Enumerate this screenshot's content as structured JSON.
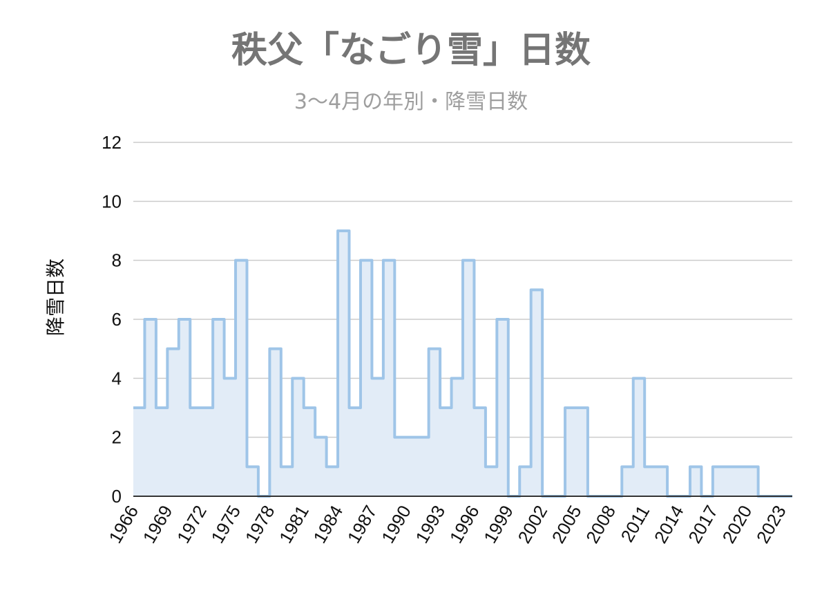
{
  "chart_data": {
    "type": "area",
    "title": "秩父「なごり雪」日数",
    "subtitle": "3〜4月の年別・降雪日数",
    "ylabel": "降雪日数",
    "xlabel": "",
    "ylim": [
      0,
      12
    ],
    "yticks": [
      "0",
      "2",
      "4",
      "6",
      "8",
      "10",
      "12"
    ],
    "xticks": [
      "1966",
      "1969",
      "1972",
      "1975",
      "1978",
      "1981",
      "1984",
      "1987",
      "1990",
      "1993",
      "1996",
      "1999",
      "2002",
      "2005",
      "2008",
      "2011",
      "2014",
      "2017",
      "2020",
      "2023"
    ],
    "step": true,
    "grid": true,
    "legend": "none",
    "colors": {
      "line": "#9fc5e8",
      "fill": "#e2ecf7",
      "grid": "#cccccc",
      "axis": "#333333"
    },
    "x": [
      1966,
      1967,
      1968,
      1969,
      1970,
      1971,
      1972,
      1973,
      1974,
      1975,
      1976,
      1977,
      1978,
      1979,
      1980,
      1981,
      1982,
      1983,
      1984,
      1985,
      1986,
      1987,
      1988,
      1989,
      1990,
      1991,
      1992,
      1993,
      1994,
      1995,
      1996,
      1997,
      1998,
      1999,
      2000,
      2001,
      2002,
      2003,
      2004,
      2005,
      2006,
      2007,
      2008,
      2009,
      2010,
      2011,
      2012,
      2013,
      2014,
      2015,
      2016,
      2017,
      2018,
      2019,
      2020,
      2021,
      2022,
      2023
    ],
    "values": [
      3,
      6,
      3,
      5,
      6,
      3,
      3,
      6,
      4,
      8,
      1,
      0,
      5,
      1,
      4,
      3,
      2,
      1,
      9,
      3,
      8,
      4,
      8,
      2,
      2,
      2,
      5,
      3,
      4,
      8,
      3,
      1,
      6,
      0,
      1,
      7,
      0,
      0,
      3,
      3,
      0,
      0,
      0,
      1,
      4,
      1,
      1,
      0,
      0,
      1,
      0,
      1,
      1,
      1,
      1,
      0,
      0,
      0
    ]
  }
}
